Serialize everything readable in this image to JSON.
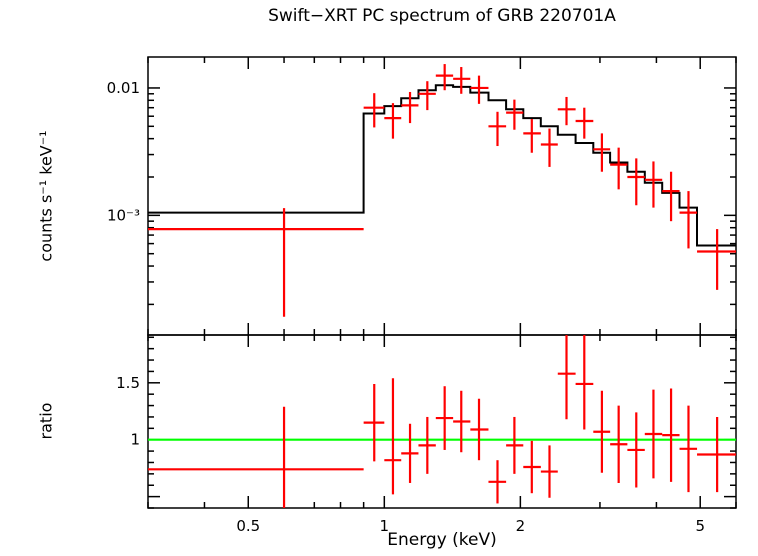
{
  "chart_data": {
    "type": "scatter",
    "title": "Swift−XRT PC spectrum of GRB 220701A",
    "xlabel": "Energy (keV)",
    "xscale": "log",
    "xlim": [
      0.3,
      6.0
    ],
    "xticks": {
      "major": [
        0.5,
        1,
        2,
        5
      ],
      "labels": [
        "0.5",
        "1",
        "2",
        "5"
      ]
    },
    "grid": false,
    "legend": "none",
    "colors": {
      "data": "#ff0000",
      "model": "#000000",
      "reference": "#00ff00",
      "axis": "#000000",
      "background": "#ffffff"
    },
    "panels": [
      {
        "name": "spectrum",
        "ylabel": "counts s⁻¹ keV⁻¹",
        "yscale": "log",
        "ylim": [
          0.000115,
          0.0175
        ],
        "yticks": {
          "major": [
            0.001,
            0.01
          ],
          "labels": [
            "10⁻³",
            "0.01"
          ]
        },
        "model_steps": [
          [
            0.3,
            0.9,
            0.00105
          ],
          [
            0.9,
            1.0,
            0.0063
          ],
          [
            1.0,
            1.09,
            0.0072
          ],
          [
            1.09,
            1.19,
            0.0083
          ],
          [
            1.19,
            1.3,
            0.0096
          ],
          [
            1.3,
            1.42,
            0.0105
          ],
          [
            1.42,
            1.55,
            0.0102
          ],
          [
            1.55,
            1.7,
            0.0092
          ],
          [
            1.7,
            1.86,
            0.008
          ],
          [
            1.86,
            2.03,
            0.0068
          ],
          [
            2.03,
            2.22,
            0.0058
          ],
          [
            2.22,
            2.42,
            0.005
          ],
          [
            2.42,
            2.65,
            0.0043
          ],
          [
            2.65,
            2.9,
            0.0037
          ],
          [
            2.9,
            3.16,
            0.0031
          ],
          [
            3.16,
            3.45,
            0.0026
          ],
          [
            3.45,
            3.77,
            0.0022
          ],
          [
            3.77,
            4.12,
            0.0018
          ],
          [
            4.12,
            4.5,
            0.0015
          ],
          [
            4.5,
            4.92,
            0.00115
          ],
          [
            4.92,
            6.0,
            0.00058
          ]
        ],
        "data_points": [
          [
            0.6,
            0.3,
            0.9,
            0.00078,
            0.00062,
            0.00036
          ],
          [
            0.95,
            0.9,
            1.0,
            0.007,
            0.0021,
            0.0021
          ],
          [
            1.045,
            1.0,
            1.09,
            0.0058,
            0.0018,
            0.0018
          ],
          [
            1.14,
            1.09,
            1.19,
            0.0073,
            0.002,
            0.002
          ],
          [
            1.245,
            1.19,
            1.3,
            0.009,
            0.0023,
            0.0023
          ],
          [
            1.36,
            1.3,
            1.42,
            0.0125,
            0.0029,
            0.0029
          ],
          [
            1.48,
            1.42,
            1.55,
            0.0118,
            0.0028,
            0.0028
          ],
          [
            1.62,
            1.55,
            1.7,
            0.01,
            0.0025,
            0.0025
          ],
          [
            1.78,
            1.7,
            1.86,
            0.005,
            0.0015,
            0.0015
          ],
          [
            1.94,
            1.86,
            2.03,
            0.0064,
            0.0017,
            0.0017
          ],
          [
            2.12,
            2.03,
            2.22,
            0.0044,
            0.0013,
            0.0013
          ],
          [
            2.32,
            2.22,
            2.42,
            0.0036,
            0.0012,
            0.0012
          ],
          [
            2.53,
            2.42,
            2.65,
            0.0068,
            0.0017,
            0.0017
          ],
          [
            2.77,
            2.65,
            2.9,
            0.0055,
            0.0015,
            0.0015
          ],
          [
            3.03,
            2.9,
            3.16,
            0.0033,
            0.0011,
            0.0011
          ],
          [
            3.3,
            3.16,
            3.45,
            0.0025,
            0.0009,
            0.0009
          ],
          [
            3.61,
            3.45,
            3.77,
            0.002,
            0.0008,
            0.0008
          ],
          [
            3.94,
            3.77,
            4.12,
            0.0019,
            0.00075,
            0.00075
          ],
          [
            4.31,
            4.12,
            4.5,
            0.00155,
            0.00065,
            0.00065
          ],
          [
            4.71,
            4.5,
            4.92,
            0.00105,
            0.0005,
            0.0005
          ],
          [
            5.45,
            4.92,
            6.0,
            0.00052,
            0.00026,
            0.00026
          ]
        ]
      },
      {
        "name": "ratio",
        "ylabel": "ratio",
        "yscale": "linear",
        "ylim": [
          0.4,
          1.92
        ],
        "yticks": {
          "major": [
            0.5,
            1,
            1.5
          ],
          "labels": [
            "",
            "1",
            "1.5"
          ],
          "minor_step": 0.1
        },
        "reference_line": {
          "y": 1,
          "color": "#00ff00"
        },
        "data_points": [
          [
            0.6,
            0.3,
            0.9,
            0.74,
            0.58,
            0.55
          ],
          [
            0.95,
            0.9,
            1.0,
            1.15,
            0.34,
            0.34
          ],
          [
            1.045,
            1.0,
            1.09,
            0.82,
            0.3,
            0.72
          ],
          [
            1.14,
            1.09,
            1.19,
            0.88,
            0.26,
            0.26
          ],
          [
            1.245,
            1.19,
            1.3,
            0.95,
            0.25,
            0.25
          ],
          [
            1.36,
            1.3,
            1.42,
            1.19,
            0.28,
            0.28
          ],
          [
            1.48,
            1.42,
            1.55,
            1.16,
            0.27,
            0.27
          ],
          [
            1.62,
            1.55,
            1.7,
            1.09,
            0.27,
            0.27
          ],
          [
            1.78,
            1.7,
            1.86,
            0.63,
            0.19,
            0.19
          ],
          [
            1.94,
            1.86,
            2.03,
            0.95,
            0.25,
            0.25
          ],
          [
            2.12,
            2.03,
            2.22,
            0.76,
            0.23,
            0.23
          ],
          [
            2.32,
            2.22,
            2.42,
            0.72,
            0.23,
            0.23
          ],
          [
            2.53,
            2.42,
            2.65,
            1.58,
            0.4,
            0.44
          ],
          [
            2.77,
            2.65,
            2.9,
            1.49,
            0.4,
            0.44
          ],
          [
            3.03,
            2.9,
            3.16,
            1.07,
            0.36,
            0.36
          ],
          [
            3.3,
            3.16,
            3.45,
            0.96,
            0.34,
            0.34
          ],
          [
            3.61,
            3.45,
            3.77,
            0.91,
            0.33,
            0.33
          ],
          [
            3.94,
            3.77,
            4.12,
            1.05,
            0.39,
            0.39
          ],
          [
            4.31,
            4.12,
            4.5,
            1.04,
            0.41,
            0.41
          ],
          [
            4.71,
            4.5,
            4.92,
            0.92,
            0.38,
            0.38
          ],
          [
            5.45,
            4.92,
            6.0,
            0.87,
            0.33,
            0.33
          ]
        ]
      }
    ]
  }
}
